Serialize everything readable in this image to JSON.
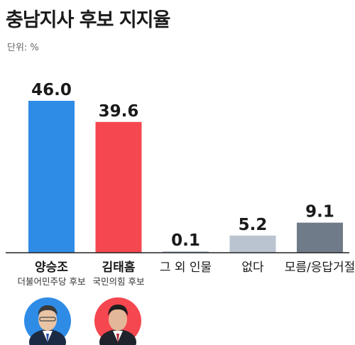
{
  "header": {
    "title": "충남지사 후보 지지율",
    "unit": "단위: %"
  },
  "chart_data": {
    "type": "bar",
    "title": "충남지사 후보 지지율",
    "unit": "%",
    "categories": [
      "양승조",
      "김태흠",
      "그 외 인물",
      "없다",
      "모름/응답거절"
    ],
    "subtitles": [
      "더불어민주당 후보",
      "국민의힘 후보",
      "",
      "",
      ""
    ],
    "values": [
      46.0,
      39.6,
      0.1,
      5.2,
      9.1
    ],
    "value_labels": [
      "46.0",
      "39.6",
      "0.1",
      "5.2",
      "9.1"
    ],
    "colors": [
      "#2f8ce6",
      "#f5474f",
      "#b9c4d0",
      "#b9c4d0",
      "#707b89"
    ],
    "bold_categories": [
      true,
      true,
      false,
      false,
      false
    ],
    "ylim": [
      0,
      46.0
    ],
    "grid": false,
    "legend": "none"
  },
  "candidates": [
    {
      "name": "양승조",
      "party": "더불어민주당 후보",
      "photo_bg": "#2f8ce6"
    },
    {
      "name": "김태흠",
      "party": "국민의힘 후보",
      "photo_bg": "#f5474f"
    }
  ]
}
